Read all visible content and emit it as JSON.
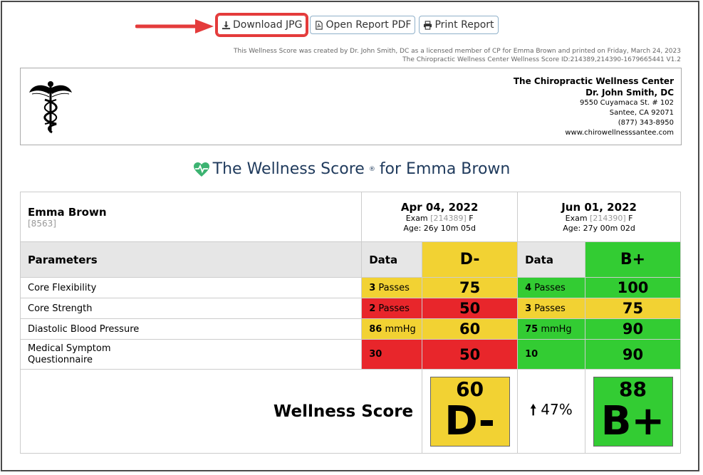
{
  "toolbar": {
    "download_jpg": "Download JPG",
    "open_pdf": "Open Report PDF",
    "print_report": "Print Report"
  },
  "meta": {
    "line1": "This Wellness Score was created by Dr. John Smith, DC as a licensed member of CP for Emma Brown and printed on Friday, March 24, 2023",
    "line2": "The Chiropractic Wellness Center Wellness Score ID:214389,214390-1679665441 V1.2"
  },
  "clinic": {
    "name": "The Chiropractic Wellness Center",
    "doctor": "Dr. John Smith, DC",
    "address1": "9550 Cuyamaca St. # 102",
    "address2": "Santee, CA 92071",
    "phone": "(877) 343-8950",
    "website": "www.chirowellnesssantee.com"
  },
  "title": {
    "prefix": "The Wellness Score",
    "reg": "®",
    "suffix": "for Emma Brown"
  },
  "patient": {
    "name": "Emma Brown",
    "id": "[8563]"
  },
  "exams": [
    {
      "date": "Apr 04, 2022",
      "exam_label": "Exam",
      "exam_id": "[214389]",
      "sex": "F",
      "age": "Age: 26y 10m 05d"
    },
    {
      "date": "Jun 01, 2022",
      "exam_label": "Exam",
      "exam_id": "[214390]",
      "sex": "F",
      "age": "Age: 27y 00m 02d"
    }
  ],
  "grid": {
    "parameters_label": "Parameters",
    "data_label": "Data",
    "grades": [
      "D-",
      "B+"
    ]
  },
  "rows": [
    {
      "name": "Core Flexibility",
      "c1_val": "3",
      "c1_unit": "Passes",
      "c1_score": "75",
      "c2_val": "4",
      "c2_unit": "Passes",
      "c2_score": "100"
    },
    {
      "name": "Core Strength",
      "c1_val": "2",
      "c1_unit": "Passes",
      "c1_score": "50",
      "c2_val": "3",
      "c2_unit": "Passes",
      "c2_score": "75"
    },
    {
      "name": "Diastolic Blood Pressure",
      "c1_val": "86",
      "c1_unit": "mmHg",
      "c1_score": "60",
      "c2_val": "75",
      "c2_unit": "mmHg",
      "c2_score": "90"
    },
    {
      "name1": "Medical Symptom",
      "name2": "Questionnaire",
      "c1_val": "30",
      "c1_unit": "",
      "c1_score": "50",
      "c2_val": "10",
      "c2_unit": "",
      "c2_score": "90"
    }
  ],
  "summary": {
    "label": "Wellness Score",
    "s1_score": "60",
    "s1_grade": "D-",
    "change": "47%",
    "s2_score": "88",
    "s2_grade": "B+"
  },
  "colors": {
    "yellow": "#f2d233",
    "red": "#e8262b",
    "green": "#33cc33",
    "title": "#1f3a5c",
    "heart": "#3cb371"
  }
}
